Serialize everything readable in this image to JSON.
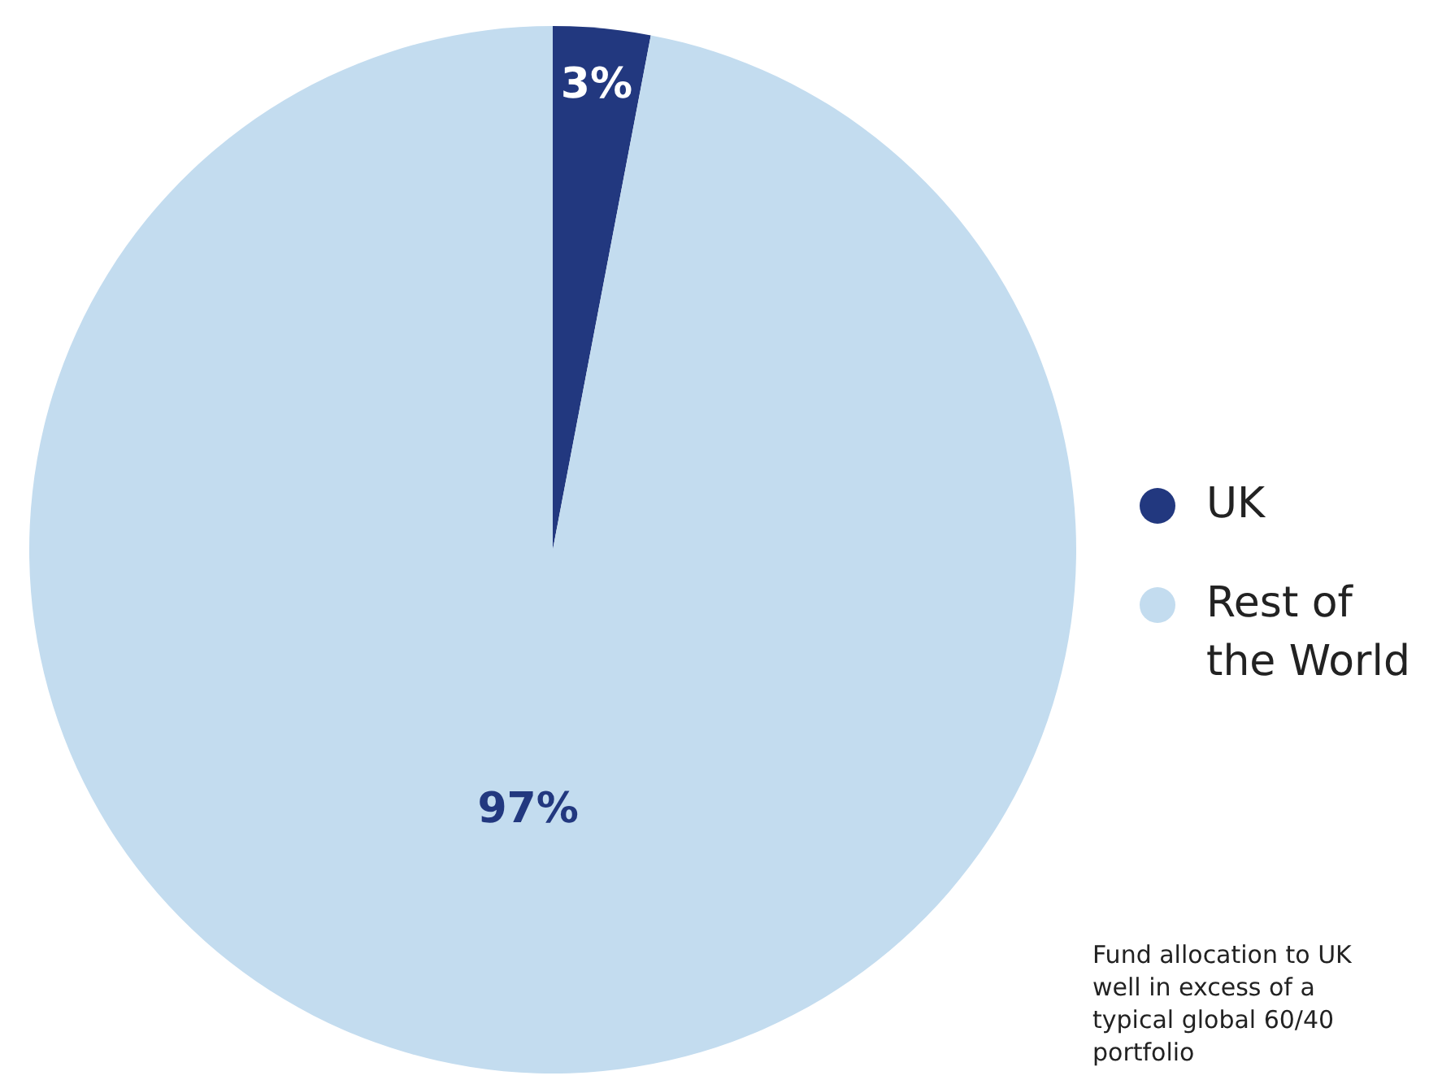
{
  "chart_data": {
    "type": "pie",
    "categories": [
      "UK",
      "Rest of\nthe World"
    ],
    "values": [
      3,
      97
    ],
    "colors": [
      "#22387f",
      "#c3dcef"
    ],
    "value_labels": [
      "3%",
      "97%"
    ],
    "legend": "right",
    "annotations": [
      "Fund allocation to UK well in excess of a typical global 60/40 portfolio"
    ]
  }
}
